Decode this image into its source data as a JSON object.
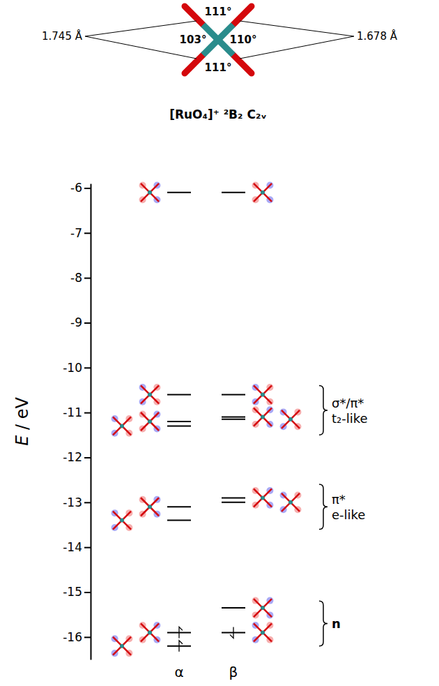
{
  "chart_data": {
    "type": "energy_levels",
    "structure": {
      "bond_labels": [
        "1.745 Å",
        "1.678 Å"
      ],
      "angle_labels": [
        "111°",
        "103°",
        "110°",
        "111°"
      ]
    },
    "title": "[RuO₄]⁺ ²B₂ C₂ᵥ",
    "y_label": "E / eV",
    "ylim": [
      -16.5,
      -5.9
    ],
    "yticks": [
      -6,
      -7,
      -8,
      -9,
      -10,
      -11,
      -12,
      -13,
      -14,
      -15,
      -16
    ],
    "series": [
      {
        "name": "α",
        "values": [
          -6.1,
          -10.6,
          -11.2,
          -11.3,
          -13.1,
          -13.4,
          -15.9,
          -16.2
        ],
        "occupation": [
          0,
          0,
          0,
          0,
          0,
          0,
          1,
          1
        ],
        "marker": "up-arrow"
      },
      {
        "name": "β",
        "values": [
          -6.1,
          -10.6,
          -11.1,
          -11.15,
          -12.9,
          -13.0,
          -15.35,
          -15.9
        ],
        "occupation": [
          0,
          0,
          0,
          0,
          0,
          0,
          0,
          1
        ],
        "marker": "down-arrow"
      }
    ],
    "groups": [
      {
        "label": "σ*/π*",
        "sublabel": "t₂-like",
        "range": [
          -11.5,
          -10.4
        ]
      },
      {
        "label": "π*",
        "sublabel": "e-like",
        "range": [
          -13.6,
          -12.6
        ]
      },
      {
        "label": "n",
        "range": [
          -16.2,
          -15.2
        ]
      }
    ]
  }
}
